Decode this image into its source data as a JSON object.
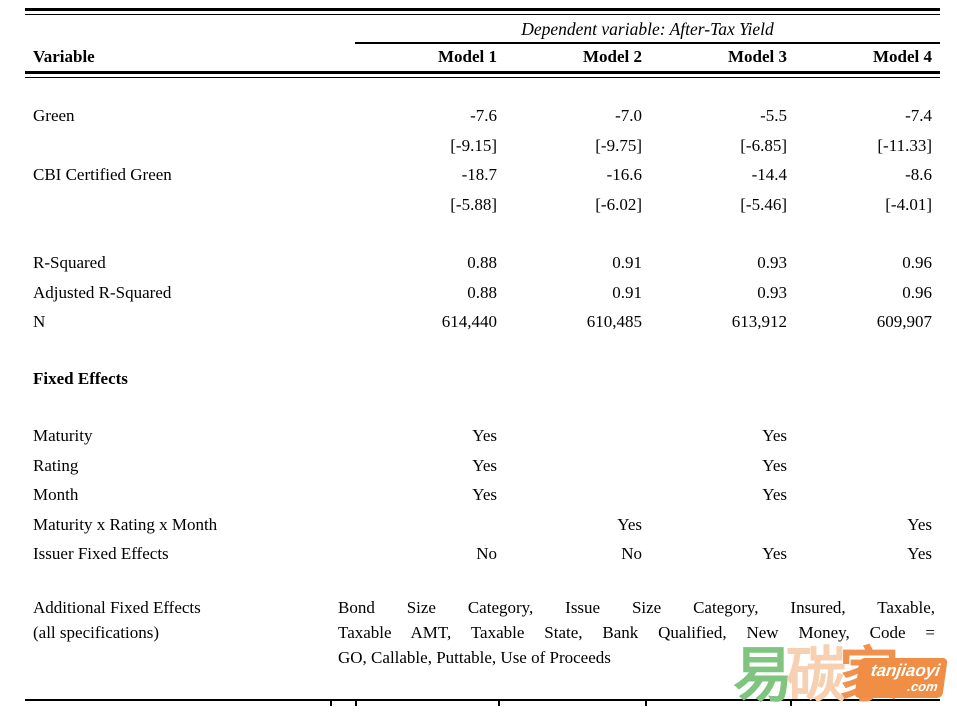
{
  "table": {
    "dependent_variable_header": "Dependent variable: After-Tax Yield",
    "variable_header": "Variable",
    "model_headers": [
      "Model 1",
      "Model 2",
      "Model 3",
      "Model 4"
    ],
    "coefficient_rows": [
      {
        "label": "Green",
        "values": [
          "-7.6",
          "-7.0",
          "-5.5",
          "-7.4"
        ]
      },
      {
        "label": "",
        "values": [
          "[-9.15]",
          "[-9.75]",
          "[-6.85]",
          "[-11.33]"
        ]
      },
      {
        "label": "CBI Certified Green",
        "values": [
          "-18.7",
          "-16.6",
          "-14.4",
          "-8.6"
        ]
      },
      {
        "label": "",
        "values": [
          "[-5.88]",
          "[-6.02]",
          "[-5.46]",
          "[-4.01]"
        ]
      }
    ],
    "stat_rows": [
      {
        "label": "R-Squared",
        "values": [
          "0.88",
          "0.91",
          "0.93",
          "0.96"
        ]
      },
      {
        "label": "Adjusted R-Squared",
        "values": [
          "0.88",
          "0.91",
          "0.93",
          "0.96"
        ]
      },
      {
        "label": "N",
        "values": [
          "614,440",
          "610,485",
          "613,912",
          "609,907"
        ]
      }
    ],
    "fixed_effects_heading": "Fixed Effects",
    "fixed_effect_rows": [
      {
        "label": "Maturity",
        "values": [
          "Yes",
          "",
          "Yes",
          ""
        ]
      },
      {
        "label": "Rating",
        "values": [
          "Yes",
          "",
          "Yes",
          ""
        ]
      },
      {
        "label": "Month",
        "values": [
          "Yes",
          "",
          "Yes",
          ""
        ]
      },
      {
        "label": "Maturity x Rating x Month",
        "values": [
          "",
          "Yes",
          "",
          "Yes"
        ]
      },
      {
        "label": "Issuer Fixed Effects",
        "values": [
          "No",
          "No",
          "Yes",
          "Yes"
        ]
      }
    ],
    "additional_fixed_effects": {
      "label_line1": "Additional Fixed Effects",
      "label_line2": "(all specifications)",
      "text_line1": "Bond Size Category, Issue Size Category, Insured, Taxable,",
      "text_line2": "Taxable AMT, Taxable State, Bank Qualified, New Money, Code =",
      "text_line3": "GO, Callable, Puttable, Use of Proceeds"
    }
  },
  "watermark": {
    "char1": "易",
    "char2": "碳",
    "char3": "家",
    "badge_line1": "tanjiaoyi",
    "badge_line2": ".com",
    "colors": {
      "char1_green": "#7fc47f",
      "char2_peach": "#f6d0b0",
      "char3_orange": "#f0924e",
      "badge_bg": "#ef8e44",
      "badge_text": "#ffffff"
    }
  }
}
